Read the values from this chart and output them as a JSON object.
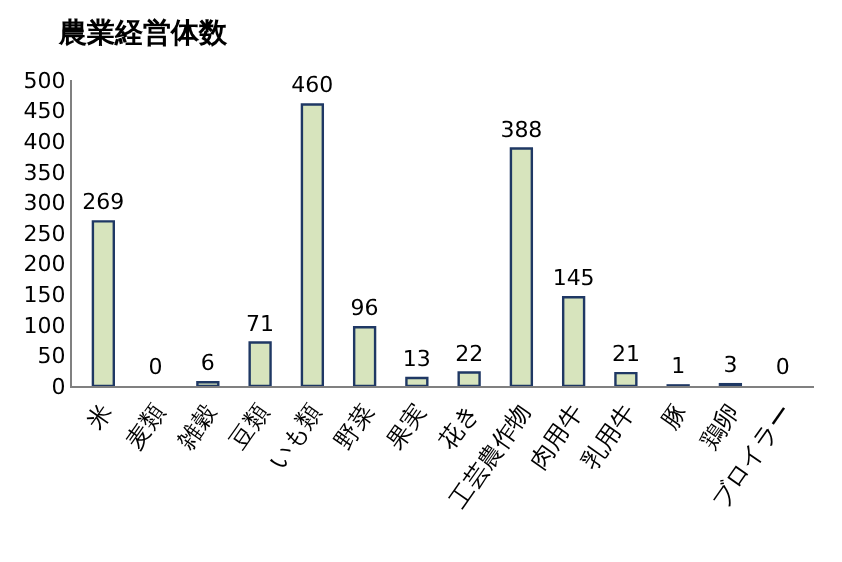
{
  "chart_data": {
    "type": "bar",
    "title": "農業経営体数",
    "categories": [
      "米",
      "麦類",
      "雑穀",
      "豆類",
      "いも類",
      "野菜",
      "果実",
      "花き",
      "工芸農作物",
      "肉用牛",
      "乳用牛",
      "豚",
      "鶏卵",
      "ブロイラー"
    ],
    "values": [
      269,
      0,
      6,
      71,
      460,
      96,
      13,
      22,
      388,
      145,
      21,
      1,
      3,
      0
    ],
    "color": "#d7e4bd",
    "ylim": [
      0,
      500
    ],
    "yticks": [
      0,
      50,
      100,
      150,
      200,
      250,
      300,
      350,
      400,
      450,
      500
    ],
    "data_labels": true
  }
}
